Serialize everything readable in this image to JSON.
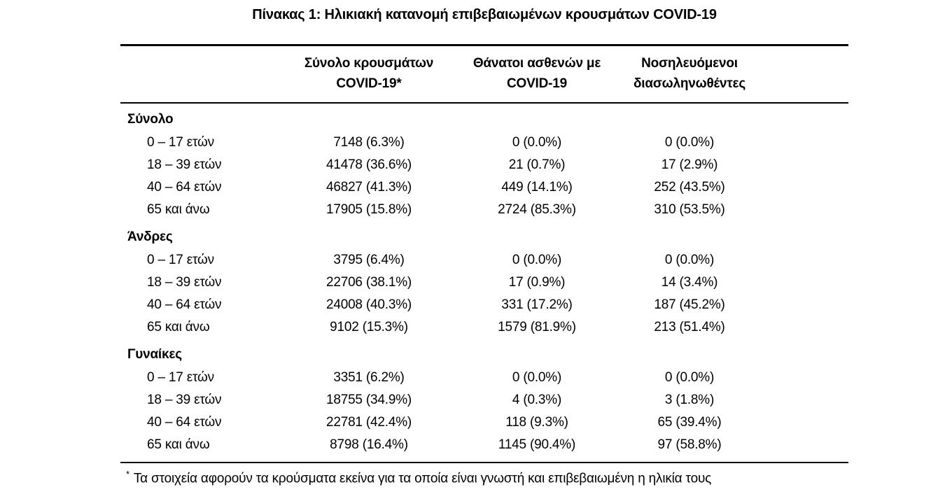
{
  "title": "Πίνακας 1: Ηλικιακή κατανομή επιβεβαιωμένων κρουσμάτων COVID-19",
  "colors": {
    "background": "#ffffff",
    "text": "#000000",
    "rule": "#000000"
  },
  "table": {
    "columns": [
      {
        "line1": "Σύνολο κρουσμάτων",
        "line2": "COVID-19*"
      },
      {
        "line1": "Θάνατοι ασθενών με",
        "line2": "COVID-19"
      },
      {
        "line1": "Νοσηλευόμενοι",
        "line2": "διασωληνωθέντες"
      }
    ],
    "sections": [
      {
        "label": "Σύνολο",
        "rows": [
          {
            "age": "0 – 17 ετών",
            "cases": "7148 (6.3%)",
            "deaths": "0 (0.0%)",
            "intubated": "0 (0.0%)"
          },
          {
            "age": "18 – 39 ετών",
            "cases": "41478 (36.6%)",
            "deaths": "21 (0.7%)",
            "intubated": "17 (2.9%)"
          },
          {
            "age": "40 – 64 ετών",
            "cases": "46827 (41.3%)",
            "deaths": "449 (14.1%)",
            "intubated": "252 (43.5%)"
          },
          {
            "age": "65 και άνω",
            "cases": "17905 (15.8%)",
            "deaths": "2724 (85.3%)",
            "intubated": "310 (53.5%)"
          }
        ]
      },
      {
        "label": "Άνδρες",
        "rows": [
          {
            "age": "0 – 17 ετών",
            "cases": "3795 (6.4%)",
            "deaths": "0 (0.0%)",
            "intubated": "0 (0.0%)"
          },
          {
            "age": "18 – 39 ετών",
            "cases": "22706 (38.1%)",
            "deaths": "17 (0.9%)",
            "intubated": "14 (3.4%)"
          },
          {
            "age": "40 – 64 ετών",
            "cases": "24008 (40.3%)",
            "deaths": "331 (17.2%)",
            "intubated": "187 (45.2%)"
          },
          {
            "age": "65 και άνω",
            "cases": "9102 (15.3%)",
            "deaths": "1579 (81.9%)",
            "intubated": "213 (51.4%)"
          }
        ]
      },
      {
        "label": "Γυναίκες",
        "rows": [
          {
            "age": "0 – 17 ετών",
            "cases": "3351 (6.2%)",
            "deaths": "0 (0.0%)",
            "intubated": "0 (0.0%)"
          },
          {
            "age": "18 – 39 ετών",
            "cases": "18755 (34.9%)",
            "deaths": "4 (0.3%)",
            "intubated": "3 (1.8%)"
          },
          {
            "age": "40 – 64 ετών",
            "cases": "22781 (42.4%)",
            "deaths": "118 (9.3%)",
            "intubated": "65 (39.4%)"
          },
          {
            "age": "65 και άνω",
            "cases": "8798 (16.4%)",
            "deaths": "1145 (90.4%)",
            "intubated": "97 (58.8%)"
          }
        ]
      }
    ]
  },
  "footnote": {
    "marker": "*",
    "text": "Τα στοιχεία αφορούν τα κρούσματα εκείνα για τα οποία είναι γνωστή και επιβεβαιωμένη η ηλικία τους"
  }
}
